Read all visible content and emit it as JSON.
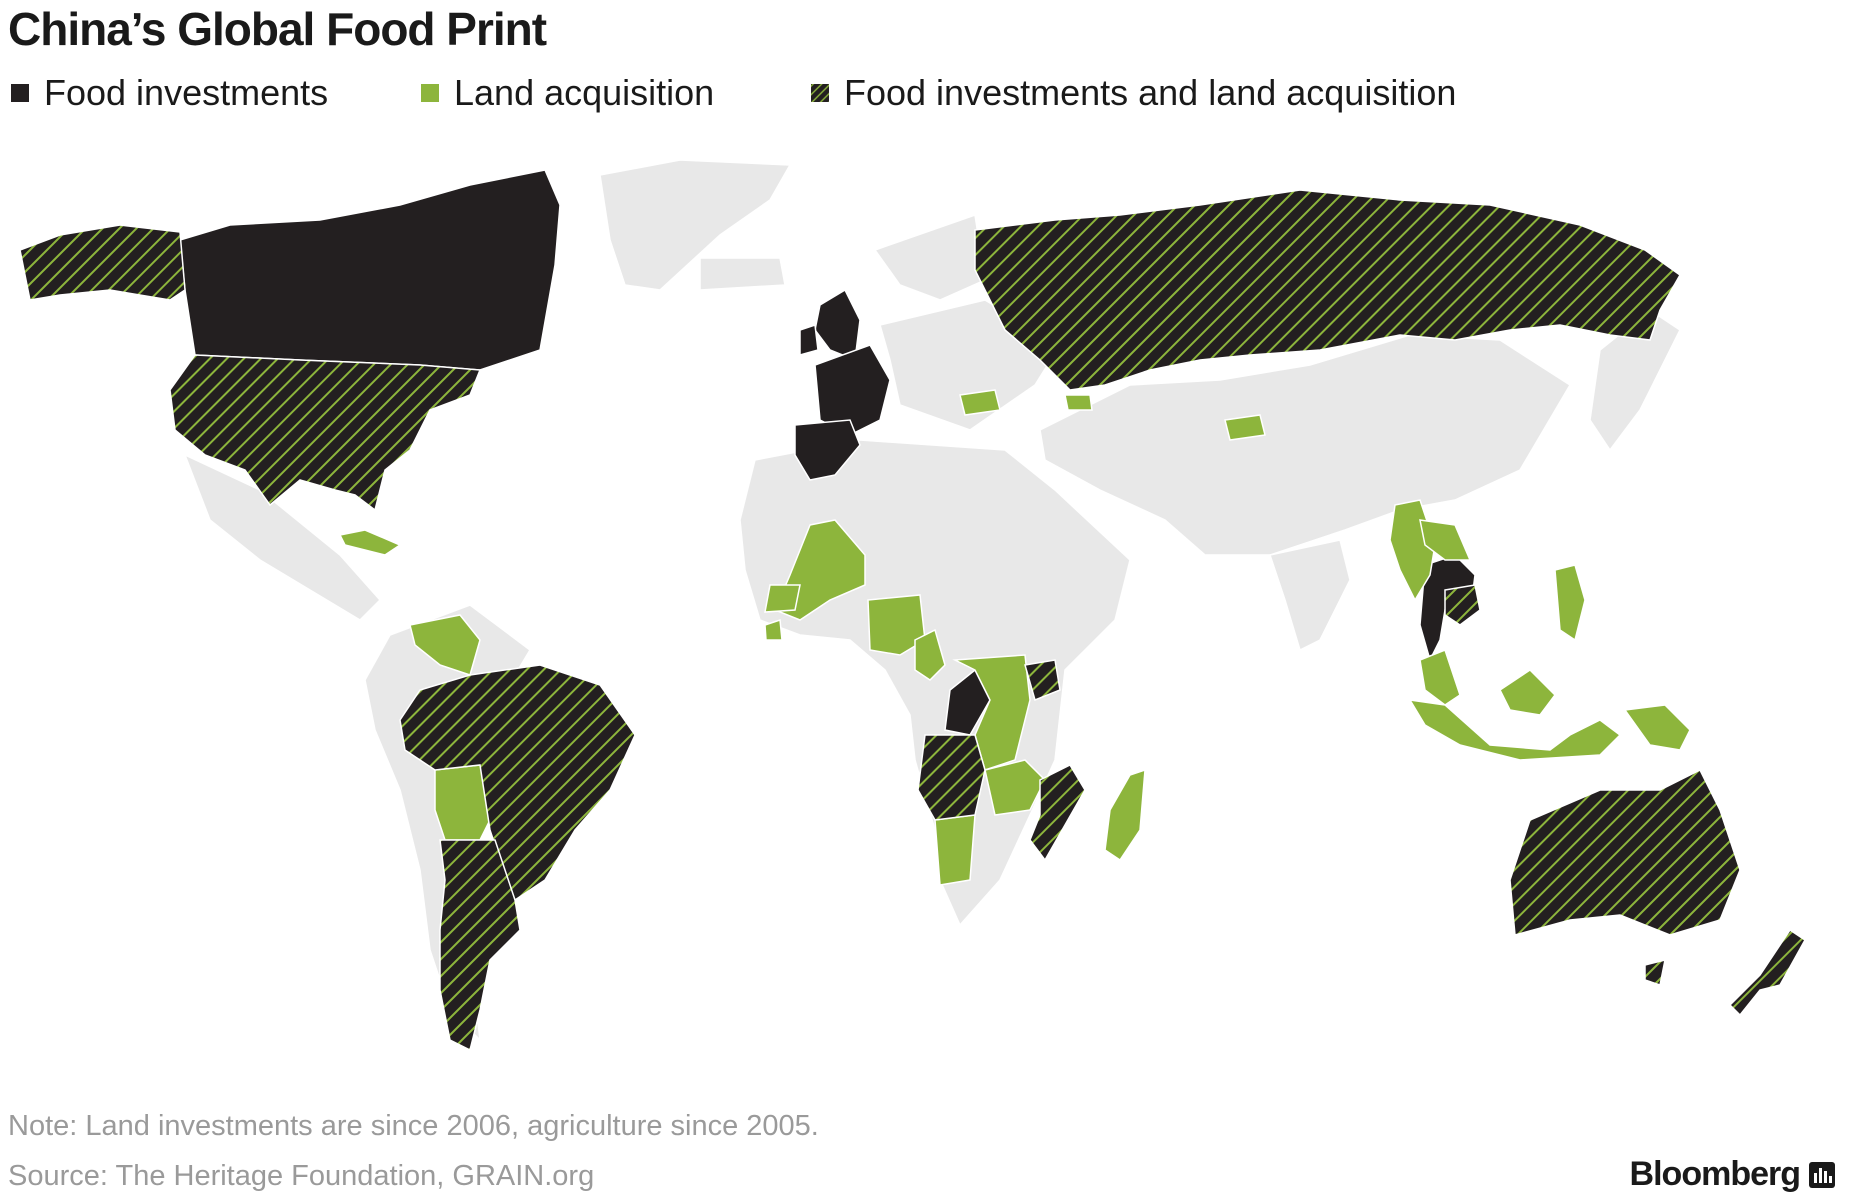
{
  "title": "China’s Global Food Print",
  "legend": [
    {
      "label": "Food investments",
      "style": "solid-dark"
    },
    {
      "label": "Land acquisition",
      "style": "solid-green"
    },
    {
      "label": "Food investments and land acquisition",
      "style": "hatched"
    }
  ],
  "colors": {
    "food_investments": "#231f20",
    "land_acquisition": "#8db53c",
    "both_base": "#231f20",
    "both_hatch": "#8db53c",
    "other_land": "#e8e8e8",
    "borders": "#ffffff",
    "ocean": "#ffffff",
    "note_text": "#9a9a9a"
  },
  "map": {
    "food_investments": [
      "Canada",
      "United Kingdom",
      "Ireland",
      "France",
      "Spain",
      "Portugal",
      "Republic of the Congo",
      "Thailand"
    ],
    "land_acquisition": [
      "Mali",
      "Senegal",
      "Sierra Leone",
      "Nigeria",
      "Cameroon",
      "Democratic Republic of the Congo",
      "Zambia",
      "Namibia",
      "Madagascar",
      "Venezuela",
      "Bolivia",
      "Cuba",
      "Bulgaria",
      "Georgia",
      "Tajikistan",
      "Myanmar",
      "Laos",
      "Malaysia",
      "Indonesia",
      "Philippines",
      "Papua New Guinea"
    ],
    "food_investments_and_land_acquisition": [
      "United States",
      "Alaska",
      "Brazil",
      "Argentina",
      "Russia",
      "Angola",
      "Tanzania",
      "Mozambique",
      "Cambodia",
      "Australia",
      "New Zealand"
    ]
  },
  "note": "Note: Land investments are since 2006, agriculture since 2005.",
  "source": "Source: The Heritage Foundation, GRAIN.org",
  "brand": "Bloomberg"
}
